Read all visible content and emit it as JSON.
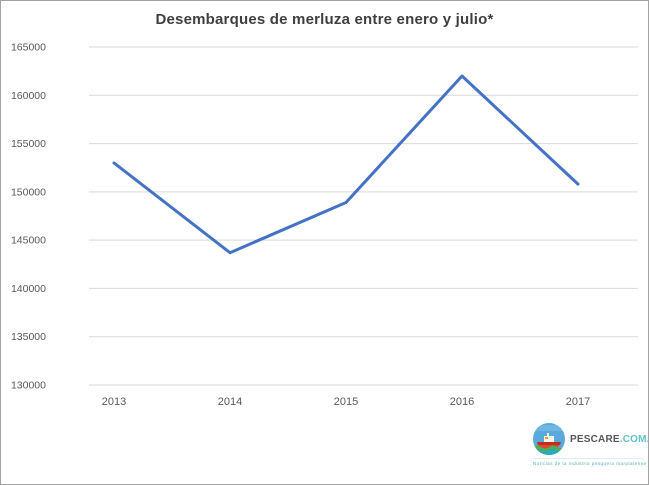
{
  "chart_data": {
    "type": "line",
    "title": "Desembarques de merluza entre enero y julio*",
    "categories": [
      "2013",
      "2014",
      "2015",
      "2016",
      "2017"
    ],
    "series": [
      {
        "name": "Desembarques de merluza",
        "values": [
          153000,
          143700,
          148900,
          162000,
          150800
        ]
      }
    ],
    "xlabel": "",
    "ylabel": "",
    "ylim": [
      130000,
      165000
    ],
    "ytick_step": 5000,
    "ytick_labels": [
      "165000",
      "160000",
      "155000",
      "150000",
      "145000",
      "140000",
      "135000",
      "130000"
    ],
    "grid": true,
    "legend_position": "none",
    "line_color": "#4472c4",
    "gridline_color": "#d9d9d9",
    "axis_label_color": "#595959",
    "title_color": "#3f3f3f"
  },
  "branding": {
    "name": "PESCARE",
    "domain": ".COM.AR",
    "tagline": "Noticias de la industria pesquera marplatense",
    "name_color": "#54565a",
    "domain_color": "#5fc2cb",
    "icon": "boat-logo-icon"
  }
}
